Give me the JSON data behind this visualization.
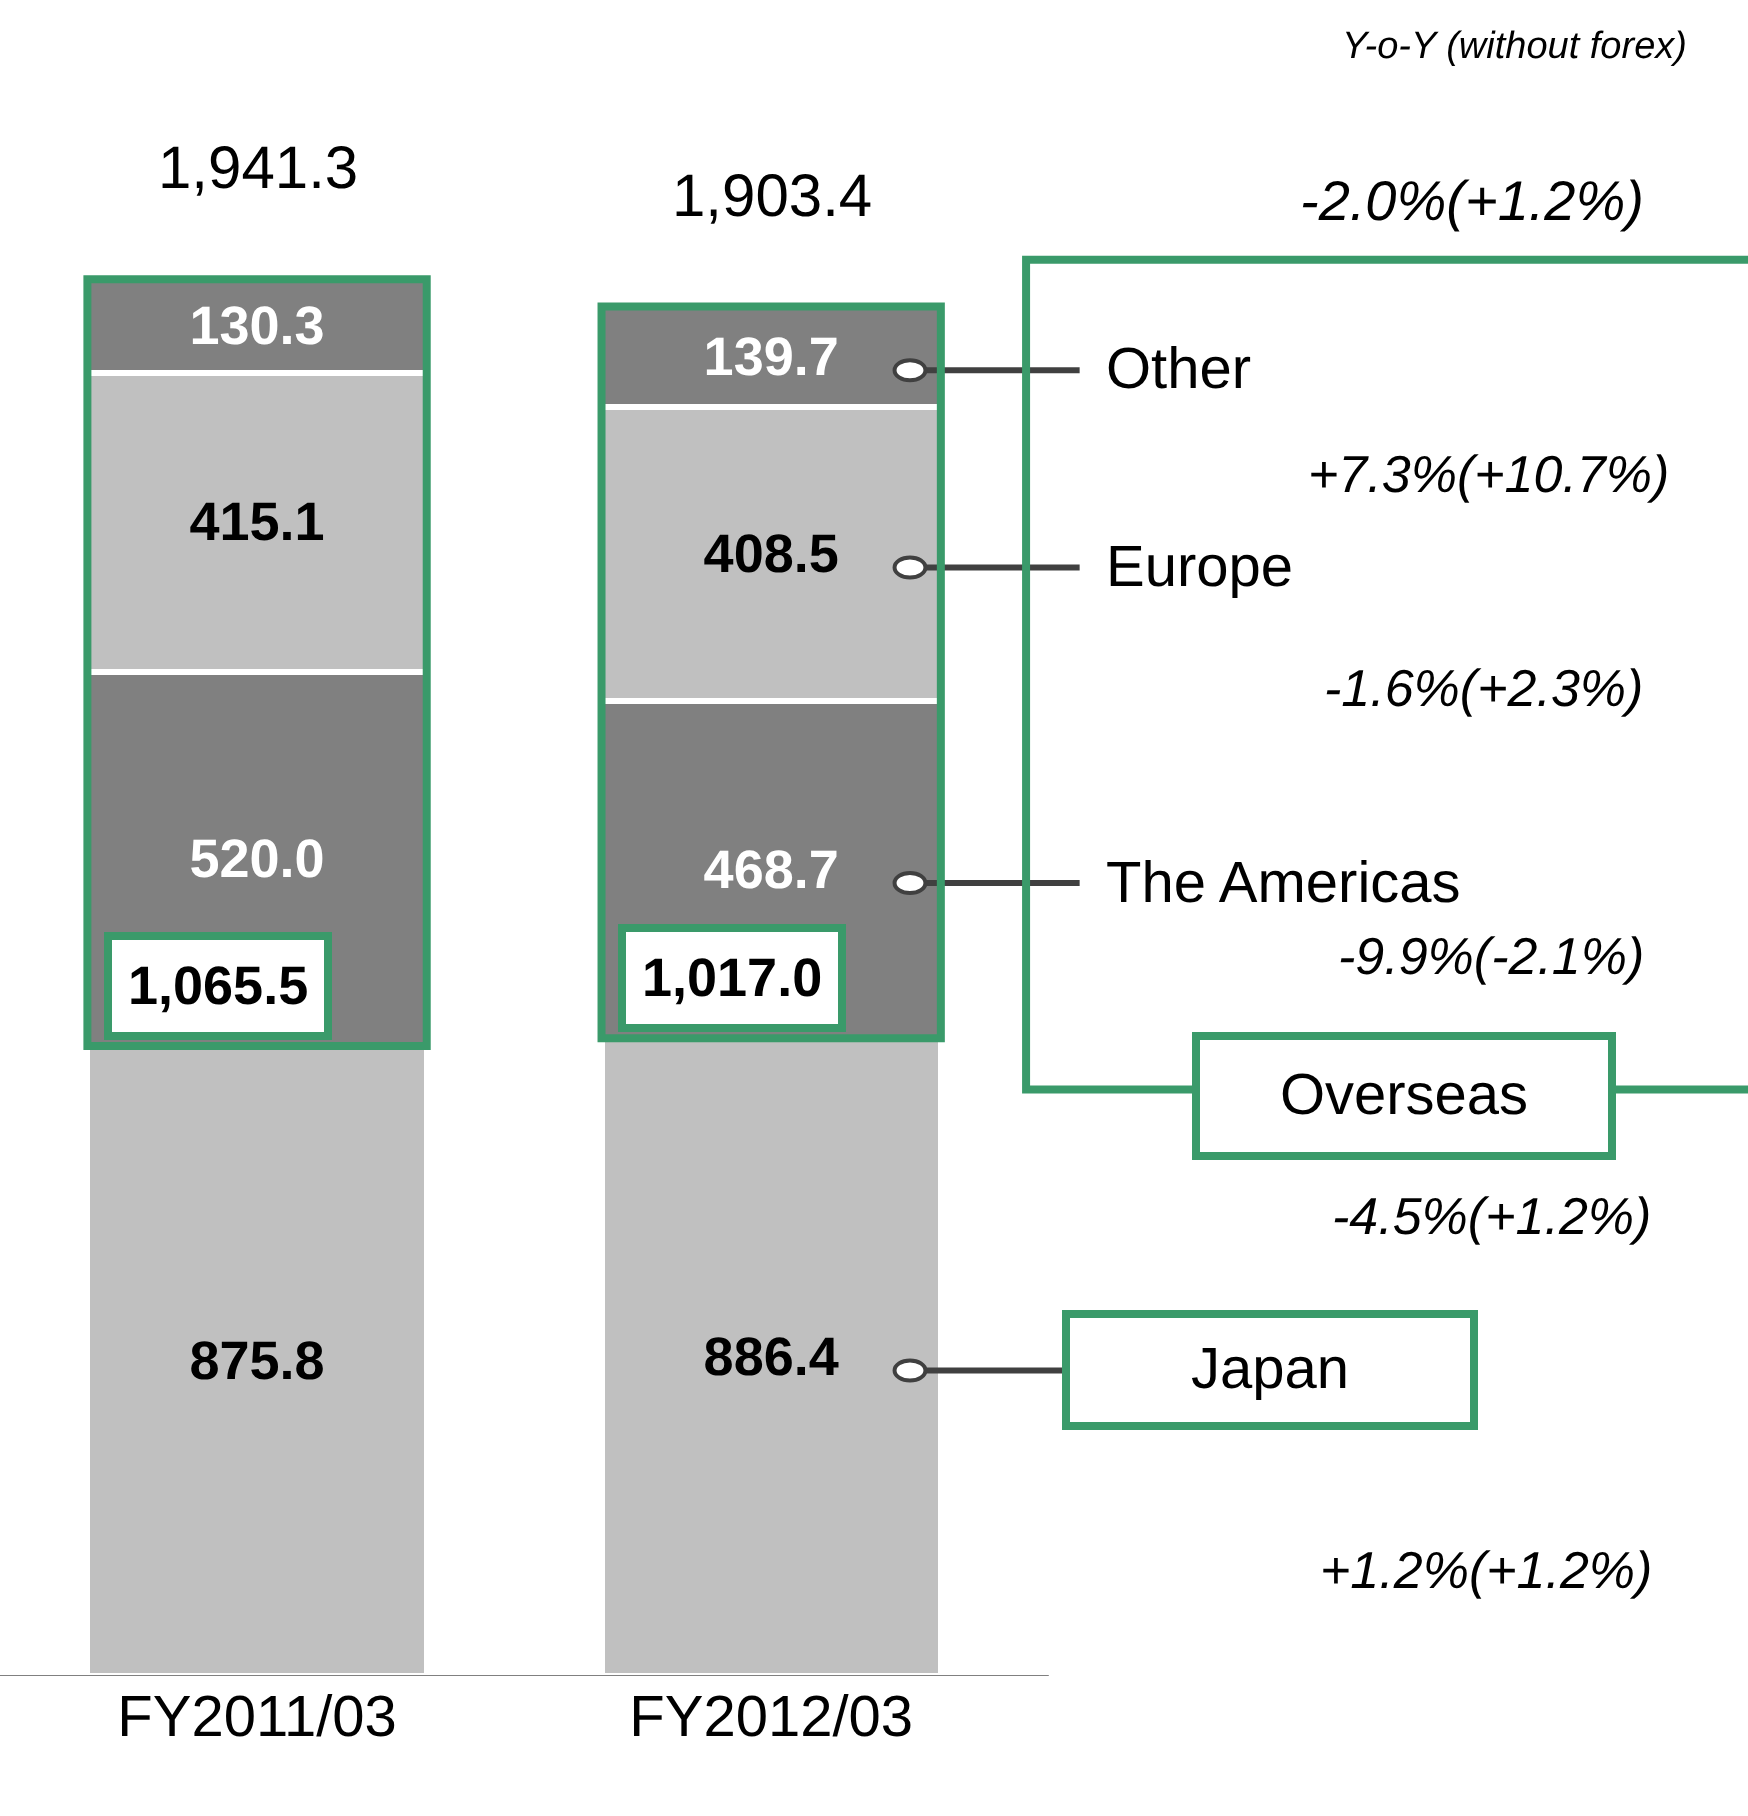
{
  "chart_data": {
    "type": "bar",
    "stacked": true,
    "legend": false,
    "categories": [
      "FY2011/03",
      "FY2012/03"
    ],
    "series": [
      {
        "name": "Japan",
        "color": "#c0c0c0",
        "values": [
          875.8,
          886.4
        ],
        "value_labels": [
          "875.8",
          "886.4"
        ]
      },
      {
        "name": "The Americas",
        "color": "#808080",
        "values": [
          520.0,
          468.7
        ],
        "value_labels": [
          "520.0",
          "468.7"
        ]
      },
      {
        "name": "Europe",
        "color": "#c0c0c0",
        "values": [
          415.1,
          408.5
        ],
        "value_labels": [
          "415.1",
          "408.5"
        ]
      },
      {
        "name": "Other",
        "color": "#808080",
        "values": [
          130.3,
          139.7
        ],
        "value_labels": [
          "130.3",
          "139.7"
        ]
      }
    ],
    "totals": [
      "1,941.3",
      "1,903.4"
    ],
    "annotations": [
      "Y-o-Y (without forex)",
      "-2.0%(+1.2%)",
      "+7.3%(+10.7%)",
      "-1.6%(+2.3%)",
      "-9.9%(-2.1%)",
      "Overseas",
      "-4.5%(+1.2%)",
      "+1.2%(+1.2%)",
      {
        "text": "1,065.5",
        "x": "FY2011/03",
        "y": 875.8
      },
      {
        "text": "1,017.0",
        "x": "FY2012/03",
        "y": 886.4
      }
    ]
  }
}
